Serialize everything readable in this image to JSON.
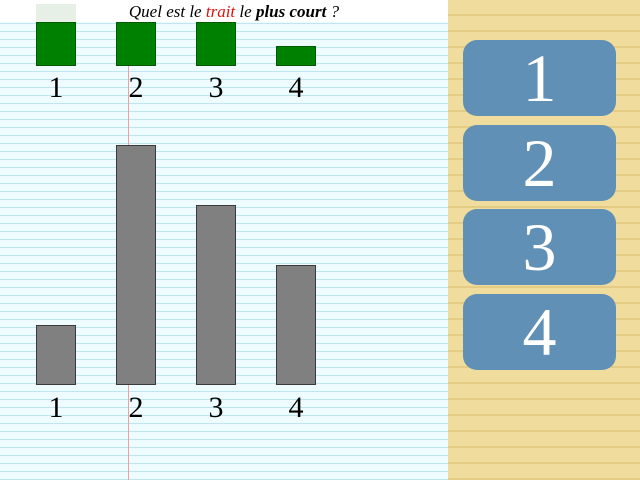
{
  "question": {
    "part1": "Quel est le ",
    "highlight": "trait",
    "part2": " le ",
    "bold": "plus court",
    "part3": " ?"
  },
  "legend_labels": [
    "1",
    "2",
    "3",
    "4"
  ],
  "bar_labels": [
    "1",
    "2",
    "3",
    "4"
  ],
  "bars": {
    "lengths": [
      60,
      240,
      180,
      120
    ],
    "legend_fill": [
      1.0,
      1.0,
      1.0,
      0.5
    ],
    "bar_color": "#808080",
    "legend_color": "#008000"
  },
  "answers": [
    "1",
    "2",
    "3",
    "4"
  ],
  "colors": {
    "question_highlight": "#e01010",
    "button": "#6190b6",
    "side_panel": "#f0dc9c",
    "paper": "#eefbff"
  }
}
